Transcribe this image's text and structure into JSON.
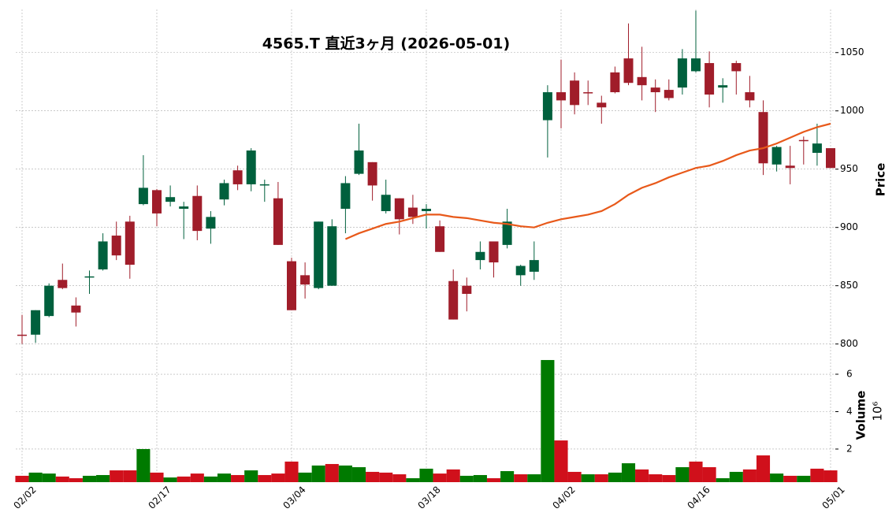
{
  "chart_data": {
    "type": "candlestick",
    "title": "4565.T  直近3ヶ月  (2026-05-01)",
    "categories": [
      "02/02",
      null,
      null,
      null,
      null,
      null,
      null,
      null,
      null,
      null,
      "02/17",
      null,
      null,
      null,
      null,
      null,
      null,
      null,
      null,
      null,
      "03/04",
      null,
      null,
      null,
      null,
      null,
      null,
      null,
      null,
      null,
      "03/18",
      null,
      null,
      null,
      null,
      null,
      null,
      null,
      null,
      null,
      "04/02",
      null,
      null,
      null,
      null,
      null,
      null,
      null,
      null,
      null,
      "04/16",
      null,
      null,
      null,
      null,
      null,
      null,
      null,
      null,
      null,
      "05/01"
    ],
    "open": [
      808,
      808,
      824,
      855,
      833,
      857,
      864,
      893,
      905,
      920,
      932,
      922,
      916,
      927,
      899,
      924,
      949,
      937,
      936,
      925,
      871,
      859,
      848,
      850,
      916,
      946,
      956,
      914,
      925,
      917,
      914,
      901,
      854,
      850,
      872,
      888,
      885,
      859,
      862,
      992,
      1016,
      1026,
      1016,
      1007,
      1033,
      1045,
      1029,
      1020,
      1018,
      1020,
      1034,
      1041,
      1020,
      1041,
      1016,
      999,
      954,
      953,
      975,
      964,
      968
    ],
    "high": [
      825,
      829,
      852,
      869,
      840,
      863,
      895,
      905,
      910,
      962,
      933,
      936,
      922,
      936,
      914,
      941,
      953,
      968,
      941,
      939,
      874,
      870,
      905,
      907,
      944,
      989,
      956,
      941,
      925,
      928,
      920,
      906,
      864,
      857,
      888,
      888,
      916,
      868,
      888,
      1022,
      1044,
      1033,
      1026,
      1013,
      1038,
      1075,
      1055,
      1027,
      1027,
      1053,
      1086,
      1051,
      1028,
      1043,
      1030,
      1009,
      970,
      970,
      978,
      989,
      968
    ],
    "low": [
      800,
      801,
      823,
      847,
      815,
      843,
      863,
      872,
      856,
      919,
      901,
      918,
      890,
      889,
      886,
      919,
      932,
      931,
      922,
      885,
      829,
      839,
      847,
      850,
      895,
      945,
      923,
      912,
      894,
      903,
      899,
      879,
      821,
      828,
      864,
      857,
      882,
      850,
      855,
      960,
      985,
      997,
      1005,
      989,
      1015,
      1022,
      1009,
      999,
      1009,
      1014,
      1033,
      1003,
      1007,
      1014,
      1003,
      945,
      948,
      937,
      954,
      953,
      951
    ],
    "close": [
      808,
      829,
      850,
      848,
      827,
      858,
      888,
      876,
      868,
      934,
      912,
      926,
      918,
      897,
      909,
      938,
      937,
      966,
      937,
      885,
      829,
      851,
      905,
      901,
      938,
      966,
      936,
      928,
      907,
      909,
      916,
      879,
      821,
      843,
      879,
      870,
      905,
      867,
      872,
      1016,
      1009,
      1005,
      1015,
      1003,
      1016,
      1024,
      1022,
      1016,
      1011,
      1045,
      1045,
      1014,
      1022,
      1034,
      1009,
      955,
      969,
      951,
      974,
      972,
      951
    ],
    "moving_average": {
      "color": "#e8591a",
      "values": [
        null,
        null,
        null,
        null,
        null,
        null,
        null,
        null,
        null,
        null,
        null,
        null,
        null,
        null,
        null,
        null,
        null,
        null,
        null,
        null,
        null,
        null,
        null,
        null,
        890,
        895,
        899,
        903,
        905,
        908,
        911,
        911,
        909,
        908,
        906,
        904,
        903,
        901,
        900,
        904,
        907,
        909,
        911,
        914,
        920,
        928,
        934,
        938,
        943,
        947,
        951,
        953,
        957,
        962,
        966,
        968,
        972,
        977,
        982,
        986,
        989
      ]
    },
    "volume": [
      0.57,
      0.74,
      0.69,
      0.53,
      0.44,
      0.57,
      0.61,
      0.86,
      0.86,
      2.0,
      0.74,
      0.48,
      0.53,
      0.69,
      0.53,
      0.69,
      0.61,
      0.86,
      0.61,
      0.69,
      1.33,
      0.74,
      1.12,
      1.2,
      1.12,
      1.03,
      0.78,
      0.74,
      0.65,
      0.44,
      0.95,
      0.69,
      0.91,
      0.57,
      0.61,
      0.44,
      0.82,
      0.65,
      0.65,
      6.76,
      2.46,
      0.78,
      0.65,
      0.65,
      0.74,
      1.24,
      0.91,
      0.65,
      0.61,
      1.03,
      1.33,
      1.03,
      0.44,
      0.78,
      0.91,
      1.66,
      0.69,
      0.57,
      0.57,
      0.95,
      0.86
    ],
    "up_color": "#00603d",
    "down_color": "#a01d2a",
    "volume_up_color": "#007a00",
    "volume_down_color": "#d0101b",
    "ylabel": "Price",
    "y2label": "Volume",
    "y2_multiplier": "10⁶",
    "ylim": [
      793,
      1087
    ],
    "yticks": [
      800,
      850,
      900,
      950,
      1000,
      1050
    ],
    "y2lim": [
      0.23,
      7.18
    ],
    "y2ticks": [
      2,
      4,
      6
    ],
    "grid": true
  }
}
